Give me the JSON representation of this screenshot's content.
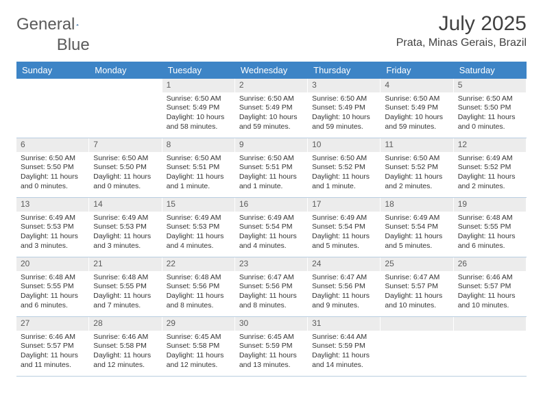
{
  "logo": {
    "text1": "General",
    "text2": "Blue",
    "mark_color": "#2f6fad"
  },
  "title": "July 2025",
  "location": "Prata, Minas Gerais, Brazil",
  "colors": {
    "header_bg": "#3d84c6",
    "header_text": "#ffffff",
    "daynum_bg": "#ececec",
    "row_divider": "#b8cde0",
    "text": "#333333"
  },
  "weekdays": [
    "Sunday",
    "Monday",
    "Tuesday",
    "Wednesday",
    "Thursday",
    "Friday",
    "Saturday"
  ],
  "weeks": [
    [
      null,
      null,
      {
        "n": "1",
        "sr": "6:50 AM",
        "ss": "5:49 PM",
        "dl": "10 hours and 58 minutes."
      },
      {
        "n": "2",
        "sr": "6:50 AM",
        "ss": "5:49 PM",
        "dl": "10 hours and 59 minutes."
      },
      {
        "n": "3",
        "sr": "6:50 AM",
        "ss": "5:49 PM",
        "dl": "10 hours and 59 minutes."
      },
      {
        "n": "4",
        "sr": "6:50 AM",
        "ss": "5:49 PM",
        "dl": "10 hours and 59 minutes."
      },
      {
        "n": "5",
        "sr": "6:50 AM",
        "ss": "5:50 PM",
        "dl": "11 hours and 0 minutes."
      }
    ],
    [
      {
        "n": "6",
        "sr": "6:50 AM",
        "ss": "5:50 PM",
        "dl": "11 hours and 0 minutes."
      },
      {
        "n": "7",
        "sr": "6:50 AM",
        "ss": "5:50 PM",
        "dl": "11 hours and 0 minutes."
      },
      {
        "n": "8",
        "sr": "6:50 AM",
        "ss": "5:51 PM",
        "dl": "11 hours and 1 minute."
      },
      {
        "n": "9",
        "sr": "6:50 AM",
        "ss": "5:51 PM",
        "dl": "11 hours and 1 minute."
      },
      {
        "n": "10",
        "sr": "6:50 AM",
        "ss": "5:52 PM",
        "dl": "11 hours and 1 minute."
      },
      {
        "n": "11",
        "sr": "6:50 AM",
        "ss": "5:52 PM",
        "dl": "11 hours and 2 minutes."
      },
      {
        "n": "12",
        "sr": "6:49 AM",
        "ss": "5:52 PM",
        "dl": "11 hours and 2 minutes."
      }
    ],
    [
      {
        "n": "13",
        "sr": "6:49 AM",
        "ss": "5:53 PM",
        "dl": "11 hours and 3 minutes."
      },
      {
        "n": "14",
        "sr": "6:49 AM",
        "ss": "5:53 PM",
        "dl": "11 hours and 3 minutes."
      },
      {
        "n": "15",
        "sr": "6:49 AM",
        "ss": "5:53 PM",
        "dl": "11 hours and 4 minutes."
      },
      {
        "n": "16",
        "sr": "6:49 AM",
        "ss": "5:54 PM",
        "dl": "11 hours and 4 minutes."
      },
      {
        "n": "17",
        "sr": "6:49 AM",
        "ss": "5:54 PM",
        "dl": "11 hours and 5 minutes."
      },
      {
        "n": "18",
        "sr": "6:49 AM",
        "ss": "5:54 PM",
        "dl": "11 hours and 5 minutes."
      },
      {
        "n": "19",
        "sr": "6:48 AM",
        "ss": "5:55 PM",
        "dl": "11 hours and 6 minutes."
      }
    ],
    [
      {
        "n": "20",
        "sr": "6:48 AM",
        "ss": "5:55 PM",
        "dl": "11 hours and 6 minutes."
      },
      {
        "n": "21",
        "sr": "6:48 AM",
        "ss": "5:55 PM",
        "dl": "11 hours and 7 minutes."
      },
      {
        "n": "22",
        "sr": "6:48 AM",
        "ss": "5:56 PM",
        "dl": "11 hours and 8 minutes."
      },
      {
        "n": "23",
        "sr": "6:47 AM",
        "ss": "5:56 PM",
        "dl": "11 hours and 8 minutes."
      },
      {
        "n": "24",
        "sr": "6:47 AM",
        "ss": "5:56 PM",
        "dl": "11 hours and 9 minutes."
      },
      {
        "n": "25",
        "sr": "6:47 AM",
        "ss": "5:57 PM",
        "dl": "11 hours and 10 minutes."
      },
      {
        "n": "26",
        "sr": "6:46 AM",
        "ss": "5:57 PM",
        "dl": "11 hours and 10 minutes."
      }
    ],
    [
      {
        "n": "27",
        "sr": "6:46 AM",
        "ss": "5:57 PM",
        "dl": "11 hours and 11 minutes."
      },
      {
        "n": "28",
        "sr": "6:46 AM",
        "ss": "5:58 PM",
        "dl": "11 hours and 12 minutes."
      },
      {
        "n": "29",
        "sr": "6:45 AM",
        "ss": "5:58 PM",
        "dl": "11 hours and 12 minutes."
      },
      {
        "n": "30",
        "sr": "6:45 AM",
        "ss": "5:59 PM",
        "dl": "11 hours and 13 minutes."
      },
      {
        "n": "31",
        "sr": "6:44 AM",
        "ss": "5:59 PM",
        "dl": "11 hours and 14 minutes."
      },
      null,
      null
    ]
  ]
}
